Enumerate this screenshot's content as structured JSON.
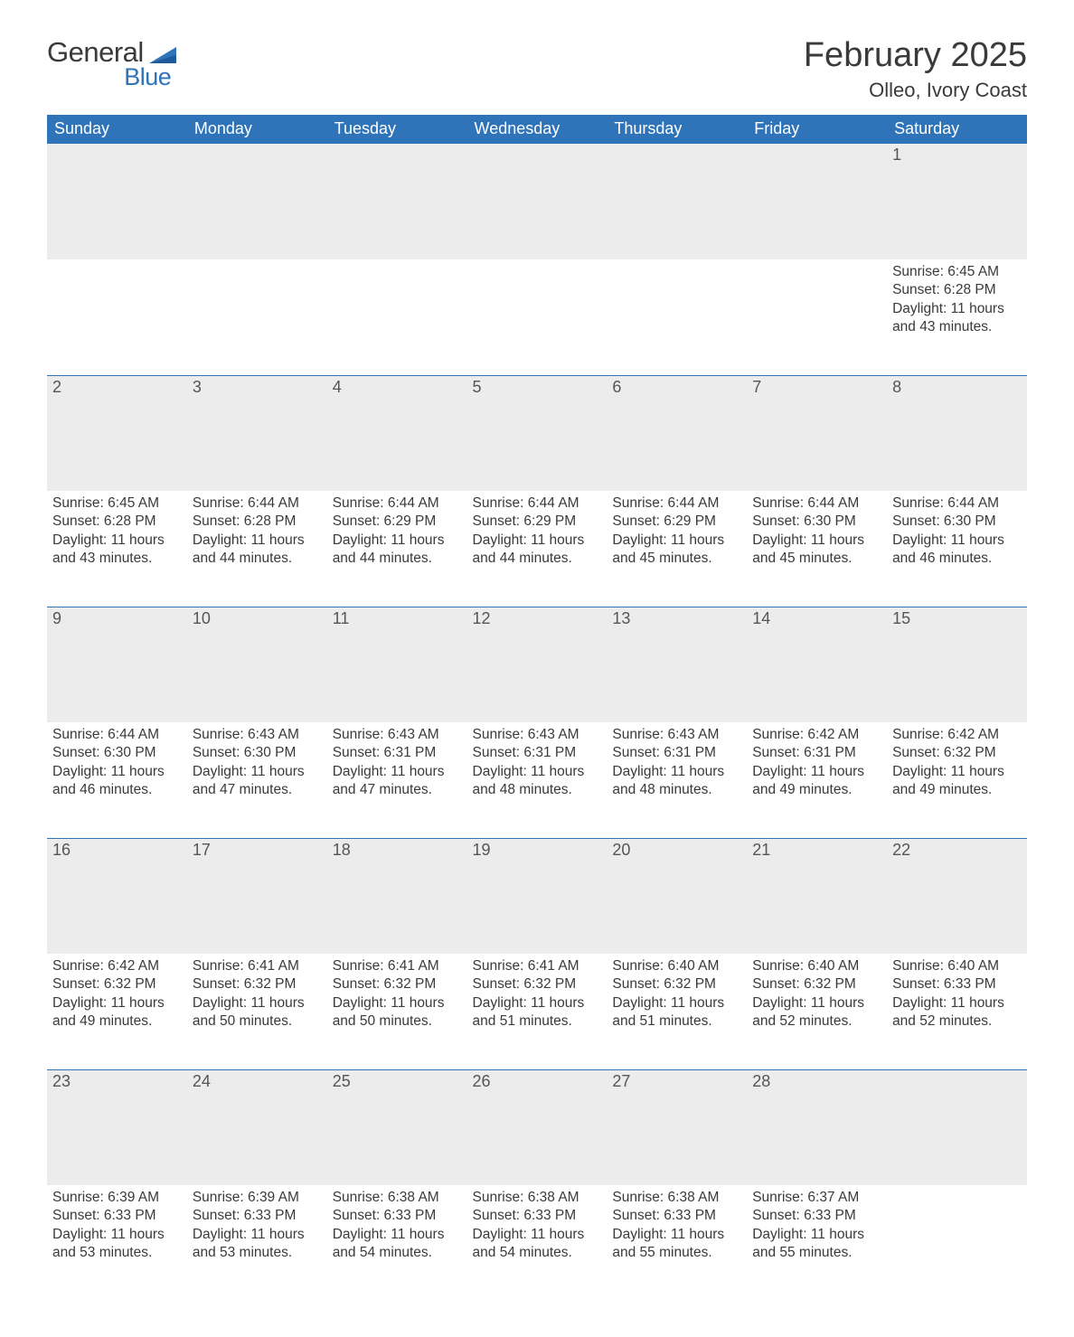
{
  "brand": {
    "text1": "General",
    "text2": "Blue",
    "logo_color": "#2f73b8",
    "text_color": "#3a3a3a"
  },
  "title": {
    "month": "February 2025",
    "location": "Olleo, Ivory Coast",
    "month_fontsize": 38,
    "location_fontsize": 22
  },
  "calendar": {
    "type": "table",
    "header_bg": "#2f73b8",
    "header_fg": "#ffffff",
    "daynum_bg": "#ececec",
    "row_border": "#2f73b8",
    "body_bg": "#ffffff",
    "text_color": "#3a3a3a",
    "day_header_fontsize": 18,
    "body_fontsize": 15.5,
    "days_of_week": [
      "Sunday",
      "Monday",
      "Tuesday",
      "Wednesday",
      "Thursday",
      "Friday",
      "Saturday"
    ],
    "weeks": [
      [
        null,
        null,
        null,
        null,
        null,
        null,
        {
          "n": "1",
          "sunrise": "Sunrise: 6:45 AM",
          "sunset": "Sunset: 6:28 PM",
          "dl1": "Daylight: 11 hours",
          "dl2": "and 43 minutes."
        }
      ],
      [
        {
          "n": "2",
          "sunrise": "Sunrise: 6:45 AM",
          "sunset": "Sunset: 6:28 PM",
          "dl1": "Daylight: 11 hours",
          "dl2": "and 43 minutes."
        },
        {
          "n": "3",
          "sunrise": "Sunrise: 6:44 AM",
          "sunset": "Sunset: 6:28 PM",
          "dl1": "Daylight: 11 hours",
          "dl2": "and 44 minutes."
        },
        {
          "n": "4",
          "sunrise": "Sunrise: 6:44 AM",
          "sunset": "Sunset: 6:29 PM",
          "dl1": "Daylight: 11 hours",
          "dl2": "and 44 minutes."
        },
        {
          "n": "5",
          "sunrise": "Sunrise: 6:44 AM",
          "sunset": "Sunset: 6:29 PM",
          "dl1": "Daylight: 11 hours",
          "dl2": "and 44 minutes."
        },
        {
          "n": "6",
          "sunrise": "Sunrise: 6:44 AM",
          "sunset": "Sunset: 6:29 PM",
          "dl1": "Daylight: 11 hours",
          "dl2": "and 45 minutes."
        },
        {
          "n": "7",
          "sunrise": "Sunrise: 6:44 AM",
          "sunset": "Sunset: 6:30 PM",
          "dl1": "Daylight: 11 hours",
          "dl2": "and 45 minutes."
        },
        {
          "n": "8",
          "sunrise": "Sunrise: 6:44 AM",
          "sunset": "Sunset: 6:30 PM",
          "dl1": "Daylight: 11 hours",
          "dl2": "and 46 minutes."
        }
      ],
      [
        {
          "n": "9",
          "sunrise": "Sunrise: 6:44 AM",
          "sunset": "Sunset: 6:30 PM",
          "dl1": "Daylight: 11 hours",
          "dl2": "and 46 minutes."
        },
        {
          "n": "10",
          "sunrise": "Sunrise: 6:43 AM",
          "sunset": "Sunset: 6:30 PM",
          "dl1": "Daylight: 11 hours",
          "dl2": "and 47 minutes."
        },
        {
          "n": "11",
          "sunrise": "Sunrise: 6:43 AM",
          "sunset": "Sunset: 6:31 PM",
          "dl1": "Daylight: 11 hours",
          "dl2": "and 47 minutes."
        },
        {
          "n": "12",
          "sunrise": "Sunrise: 6:43 AM",
          "sunset": "Sunset: 6:31 PM",
          "dl1": "Daylight: 11 hours",
          "dl2": "and 48 minutes."
        },
        {
          "n": "13",
          "sunrise": "Sunrise: 6:43 AM",
          "sunset": "Sunset: 6:31 PM",
          "dl1": "Daylight: 11 hours",
          "dl2": "and 48 minutes."
        },
        {
          "n": "14",
          "sunrise": "Sunrise: 6:42 AM",
          "sunset": "Sunset: 6:31 PM",
          "dl1": "Daylight: 11 hours",
          "dl2": "and 49 minutes."
        },
        {
          "n": "15",
          "sunrise": "Sunrise: 6:42 AM",
          "sunset": "Sunset: 6:32 PM",
          "dl1": "Daylight: 11 hours",
          "dl2": "and 49 minutes."
        }
      ],
      [
        {
          "n": "16",
          "sunrise": "Sunrise: 6:42 AM",
          "sunset": "Sunset: 6:32 PM",
          "dl1": "Daylight: 11 hours",
          "dl2": "and 49 minutes."
        },
        {
          "n": "17",
          "sunrise": "Sunrise: 6:41 AM",
          "sunset": "Sunset: 6:32 PM",
          "dl1": "Daylight: 11 hours",
          "dl2": "and 50 minutes."
        },
        {
          "n": "18",
          "sunrise": "Sunrise: 6:41 AM",
          "sunset": "Sunset: 6:32 PM",
          "dl1": "Daylight: 11 hours",
          "dl2": "and 50 minutes."
        },
        {
          "n": "19",
          "sunrise": "Sunrise: 6:41 AM",
          "sunset": "Sunset: 6:32 PM",
          "dl1": "Daylight: 11 hours",
          "dl2": "and 51 minutes."
        },
        {
          "n": "20",
          "sunrise": "Sunrise: 6:40 AM",
          "sunset": "Sunset: 6:32 PM",
          "dl1": "Daylight: 11 hours",
          "dl2": "and 51 minutes."
        },
        {
          "n": "21",
          "sunrise": "Sunrise: 6:40 AM",
          "sunset": "Sunset: 6:32 PM",
          "dl1": "Daylight: 11 hours",
          "dl2": "and 52 minutes."
        },
        {
          "n": "22",
          "sunrise": "Sunrise: 6:40 AM",
          "sunset": "Sunset: 6:33 PM",
          "dl1": "Daylight: 11 hours",
          "dl2": "and 52 minutes."
        }
      ],
      [
        {
          "n": "23",
          "sunrise": "Sunrise: 6:39 AM",
          "sunset": "Sunset: 6:33 PM",
          "dl1": "Daylight: 11 hours",
          "dl2": "and 53 minutes."
        },
        {
          "n": "24",
          "sunrise": "Sunrise: 6:39 AM",
          "sunset": "Sunset: 6:33 PM",
          "dl1": "Daylight: 11 hours",
          "dl2": "and 53 minutes."
        },
        {
          "n": "25",
          "sunrise": "Sunrise: 6:38 AM",
          "sunset": "Sunset: 6:33 PM",
          "dl1": "Daylight: 11 hours",
          "dl2": "and 54 minutes."
        },
        {
          "n": "26",
          "sunrise": "Sunrise: 6:38 AM",
          "sunset": "Sunset: 6:33 PM",
          "dl1": "Daylight: 11 hours",
          "dl2": "and 54 minutes."
        },
        {
          "n": "27",
          "sunrise": "Sunrise: 6:38 AM",
          "sunset": "Sunset: 6:33 PM",
          "dl1": "Daylight: 11 hours",
          "dl2": "and 55 minutes."
        },
        {
          "n": "28",
          "sunrise": "Sunrise: 6:37 AM",
          "sunset": "Sunset: 6:33 PM",
          "dl1": "Daylight: 11 hours",
          "dl2": "and 55 minutes."
        },
        null
      ]
    ]
  }
}
